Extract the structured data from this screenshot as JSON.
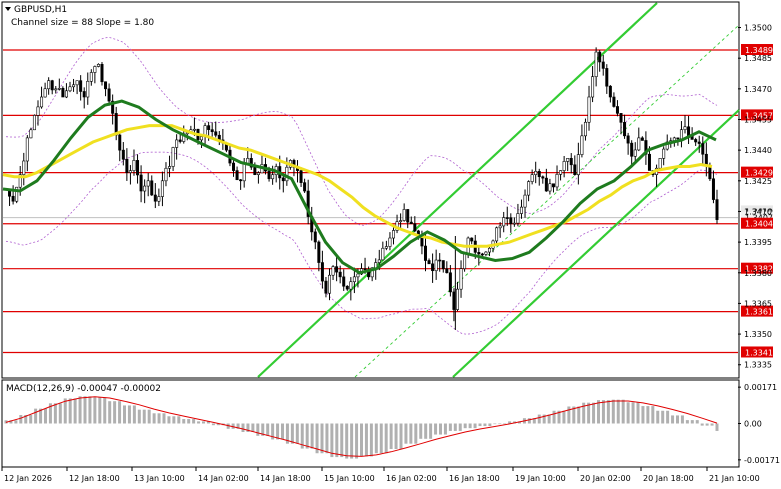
{
  "chart_data": {
    "type": "candlestick",
    "symbol_title": "GBPUSD,H1",
    "indicator_caption": "Channel size = 88 Slope = 1.80",
    "ylim": [
      1.3329,
      1.3512
    ],
    "x_range_hours": [
      0,
      228
    ],
    "price_ticks": [
      "1.3500",
      "1.3485",
      "1.3470",
      "1.3455",
      "1.3440",
      "1.3425",
      "1.3410",
      "1.3395",
      "1.3380",
      "1.3365",
      "1.3350",
      "1.3335"
    ],
    "price_tick_values": [
      1.35,
      1.3485,
      1.347,
      1.3455,
      1.344,
      1.3425,
      1.341,
      1.3395,
      1.338,
      1.3365,
      1.335,
      1.3335
    ],
    "x_tick_labels": [
      "12 Jan 2026",
      "12 Jan 18:00",
      "13 Jan 10:00",
      "14 Jan 02:00",
      "14 Jan 18:00",
      "15 Jan 10:00",
      "16 Jan 02:00",
      "16 Jan 18:00",
      "19 Jan 10:00",
      "20 Jan 02:00",
      "20 Jan 18:00",
      "21 Jan 10:00"
    ],
    "x_tick_hours": [
      0,
      16,
      32,
      48,
      64,
      80,
      96,
      112,
      128,
      144,
      160,
      176
    ],
    "levels": [
      {
        "label": "1.3489",
        "value": 1.3489
      },
      {
        "label": "1.3457",
        "value": 1.3457
      },
      {
        "label": "1.3429",
        "value": 1.3429
      },
      {
        "label": "1.3404",
        "value": 1.3404
      },
      {
        "label": "1.3382",
        "value": 1.3382
      },
      {
        "label": "1.3361",
        "value": 1.3361
      },
      {
        "label": "1.3341",
        "value": 1.3341
      }
    ],
    "current_price": {
      "label": "1.3407",
      "value": 1.3407
    },
    "bid_price": {
      "label": "1.3410",
      "value": 1.341
    },
    "close_series": [
      1.342,
      1.3415,
      1.3428,
      1.3446,
      1.3457,
      1.3466,
      1.3474,
      1.347,
      1.3466,
      1.3471,
      1.3474,
      1.3466,
      1.3478,
      1.3482,
      1.347,
      1.3458,
      1.344,
      1.3429,
      1.3435,
      1.342,
      1.3425,
      1.3415,
      1.3425,
      1.3432,
      1.3445,
      1.3448,
      1.345,
      1.3445,
      1.3452,
      1.3449,
      1.3445,
      1.344,
      1.343,
      1.3425,
      1.3436,
      1.3428,
      1.3433,
      1.3426,
      1.3432,
      1.3425,
      1.3435,
      1.343,
      1.342,
      1.34,
      1.3385,
      1.337,
      1.3383,
      1.3378,
      1.3372,
      1.3378,
      1.3382,
      1.3378,
      1.3385,
      1.3392,
      1.3397,
      1.3405,
      1.3411,
      1.3404,
      1.3398,
      1.3386,
      1.3381,
      1.3386,
      1.338,
      1.3362,
      1.3382,
      1.3397,
      1.339,
      1.3389,
      1.3392,
      1.3402,
      1.3407,
      1.3404,
      1.3409,
      1.3418,
      1.3428,
      1.3427,
      1.342,
      1.3422,
      1.343,
      1.3436,
      1.3428,
      1.3447,
      1.3466,
      1.3488,
      1.348,
      1.3466,
      1.3458,
      1.3447,
      1.3437,
      1.3446,
      1.3438,
      1.3428,
      1.3436,
      1.3444,
      1.3446,
      1.345,
      1.3447,
      1.3444,
      1.3438,
      1.3426,
      1.3406
    ],
    "sma_slow_series": [
      1.3428,
      1.3427,
      1.3427,
      1.3429,
      1.3432,
      1.3435,
      1.3438,
      1.3441,
      1.3444,
      1.3446,
      1.3448,
      1.345,
      1.3451,
      1.3452,
      1.3452,
      1.3452,
      1.345,
      1.3448,
      1.3447,
      1.3445,
      1.3443,
      1.3441,
      1.344,
      1.3438,
      1.3436,
      1.3434,
      1.3432,
      1.343,
      1.3428,
      1.3425,
      1.3421,
      1.3417,
      1.3412,
      1.3408,
      1.3405,
      1.3402,
      1.34,
      1.3398,
      1.3397,
      1.3395,
      1.3394,
      1.3393,
      1.3393,
      1.3393,
      1.3394,
      1.3395,
      1.3397,
      1.3399,
      1.3401,
      1.3403,
      1.3405,
      1.3408,
      1.3411,
      1.3415,
      1.3418,
      1.3422,
      1.3425,
      1.3427,
      1.343,
      1.3431,
      1.3432,
      1.3432,
      1.3433,
      1.3432
    ],
    "sma_fast_series": [
      1.3421,
      1.342,
      1.3425,
      1.3435,
      1.3446,
      1.3456,
      1.3462,
      1.3464,
      1.3461,
      1.3455,
      1.345,
      1.3446,
      1.3442,
      1.3438,
      1.3434,
      1.3432,
      1.343,
      1.3426,
      1.341,
      1.3395,
      1.3385,
      1.338,
      1.3382,
      1.3388,
      1.3395,
      1.34,
      1.3396,
      1.339,
      1.3388,
      1.3386,
      1.3387,
      1.339,
      1.3397,
      1.3405,
      1.3414,
      1.3421,
      1.3425,
      1.3432,
      1.344,
      1.3443,
      1.3445,
      1.3449,
      1.3445
    ],
    "macd": {
      "label": "MACD(12,26,9) -0.00047 -0.00002",
      "ticks": [
        "0.00171",
        "0.00",
        "-0.00171"
      ],
      "tick_values": [
        0.00171,
        0.0,
        -0.00171
      ],
      "ylim": [
        -0.002,
        0.002
      ],
      "histogram": [
        0.00015,
        0.0004,
        0.0007,
        0.00095,
        0.00118,
        0.00128,
        0.00123,
        0.00105,
        0.00085,
        0.00065,
        0.00048,
        0.00034,
        0.00021,
        0.0001,
        -8e-05,
        -0.00025,
        -0.0004,
        -0.00058,
        -0.00075,
        -0.00095,
        -0.00118,
        -0.0014,
        -0.00158,
        -0.00165,
        -0.00155,
        -0.0014,
        -0.0012,
        -0.00095,
        -0.00072,
        -0.00052,
        -0.00035,
        -0.00022,
        -0.00012,
        -3e-05,
        0.0001,
        0.00025,
        0.00042,
        0.0006,
        0.0008,
        0.00098,
        0.0011,
        0.00112,
        0.001,
        0.00082,
        0.0006,
        0.00038,
        0.00016,
        -0.0001,
        -0.00035
      ],
      "signal": [
        5e-05,
        0.00025,
        0.00052,
        0.0008,
        0.00105,
        0.0012,
        0.00126,
        0.0012,
        0.00105,
        0.00088,
        0.00068,
        0.0005,
        0.00035,
        0.0002,
        5e-05,
        -0.0001,
        -0.00026,
        -0.00044,
        -0.00062,
        -0.0008,
        -0.001,
        -0.0012,
        -0.0014,
        -0.00152,
        -0.00155,
        -0.00148,
        -0.00133,
        -0.00115,
        -0.00095,
        -0.00075,
        -0.00057,
        -0.0004,
        -0.00026,
        -0.00014,
        -2e-05,
        0.00012,
        0.00028,
        0.00045,
        0.00064,
        0.00082,
        0.00097,
        0.00106,
        0.00106,
        0.00097,
        0.00083,
        0.00066,
        0.00047,
        0.00025,
        2e-05
      ]
    },
    "colors": {
      "bull": "#000000",
      "bear": "#000000",
      "level_line": "#e00000",
      "level_tag": "#e00000",
      "sma_fast": "#1e7b1e",
      "sma_slow": "#f0e020",
      "channel_main": "#33cc33",
      "channel_dotted": "#33cc33",
      "bands": "#b060d0",
      "macd_hist": "#b0b0b0",
      "macd_signal": "#e00000",
      "current_price_line": "#c0c0c0"
    }
  }
}
